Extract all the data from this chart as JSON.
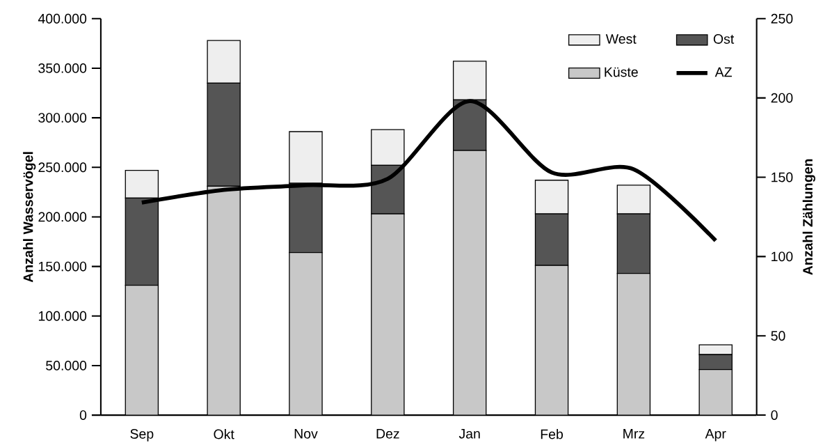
{
  "chart_data": {
    "type": "bar",
    "stacked": true,
    "categories": [
      "Sep",
      "Okt",
      "Nov",
      "Dez",
      "Jan",
      "Feb",
      "Mrz",
      "Apr"
    ],
    "ylabel": "Anzahl Wasservögel",
    "y2label": "Anzahl Zählungen",
    "ylim": [
      0,
      400000
    ],
    "yticks": [
      0,
      {
        "value": 50000,
        "label": "50.000"
      },
      {
        "value": 100000,
        "label": "100.000"
      },
      {
        "value": 150000,
        "label": "150.000"
      },
      {
        "value": 200000,
        "label": "200.000"
      },
      {
        "value": 250000,
        "label": "250.000"
      },
      {
        "value": 300000,
        "label": "300.000"
      },
      {
        "value": 350000,
        "label": "350.000"
      },
      {
        "value": 400000,
        "label": "400.000"
      }
    ],
    "y2lim": [
      0,
      250
    ],
    "y2ticks": [
      0,
      50,
      100,
      150,
      200,
      250
    ],
    "legend": "top right",
    "series": [
      {
        "name": "Küste",
        "color": "#c8c8c8",
        "values": [
          131000,
          231000,
          164000,
          203000,
          267000,
          151000,
          143000,
          46000
        ]
      },
      {
        "name": "Ost",
        "color": "#555555",
        "values": [
          88000,
          104000,
          70000,
          49000,
          51000,
          52000,
          60000,
          15000
        ]
      },
      {
        "name": "West",
        "color": "#eeeeee",
        "values": [
          28000,
          43000,
          52000,
          36000,
          39000,
          34000,
          29000,
          10000
        ]
      },
      {
        "name": "AZ",
        "type": "line",
        "axis": "y2",
        "color": "#000000",
        "values": [
          134,
          142,
          145,
          149,
          198,
          153,
          155,
          110
        ]
      }
    ]
  }
}
